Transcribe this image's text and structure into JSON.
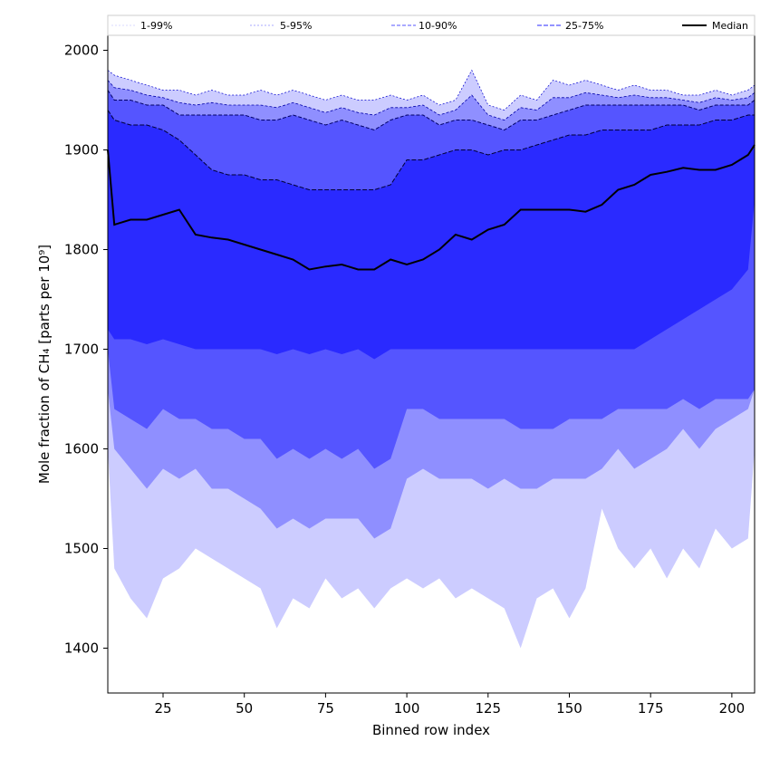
{
  "chart_data": {
    "type": "area",
    "xlabel": "Binned row index",
    "ylabel": "Mole fraction of CH₄ [parts per 10⁹]",
    "xlim": [
      8,
      207
    ],
    "ylim": [
      1355,
      2015
    ],
    "xticks": [
      25,
      50,
      75,
      100,
      125,
      150,
      175,
      200
    ],
    "yticks": [
      1400,
      1500,
      1600,
      1700,
      1800,
      1900,
      2000
    ],
    "legend": [
      "1-99%",
      "5-95%",
      "10-90%",
      "25-75%",
      "Median"
    ],
    "legend_position": "top",
    "x": [
      8,
      10,
      15,
      20,
      25,
      30,
      35,
      40,
      45,
      50,
      55,
      60,
      65,
      70,
      75,
      80,
      85,
      90,
      95,
      100,
      105,
      110,
      115,
      120,
      125,
      130,
      135,
      140,
      145,
      150,
      155,
      160,
      165,
      170,
      175,
      180,
      185,
      190,
      195,
      200,
      205,
      207
    ],
    "bands": [
      {
        "name": "1-99%",
        "lower": [
          1600,
          1480,
          1450,
          1430,
          1470,
          1480,
          1500,
          1490,
          1480,
          1470,
          1460,
          1420,
          1450,
          1440,
          1470,
          1450,
          1460,
          1440,
          1460,
          1470,
          1460,
          1470,
          1450,
          1460,
          1450,
          1440,
          1400,
          1450,
          1460,
          1430,
          1460,
          1540,
          1500,
          1480,
          1500,
          1470,
          1500,
          1480,
          1520,
          1500,
          1510,
          1600
        ],
        "upper": [
          1980,
          1975,
          1970,
          1965,
          1960,
          1960,
          1955,
          1960,
          1955,
          1955,
          1960,
          1955,
          1960,
          1955,
          1950,
          1955,
          1950,
          1950,
          1955,
          1950,
          1955,
          1945,
          1950,
          1980,
          1945,
          1940,
          1955,
          1950,
          1970,
          1965,
          1970,
          1965,
          1960,
          1965,
          1960,
          1960,
          1955,
          1955,
          1960,
          1955,
          1960,
          1965
        ]
      },
      {
        "name": "5-95%",
        "lower": [
          1660,
          1600,
          1580,
          1560,
          1580,
          1570,
          1580,
          1560,
          1560,
          1550,
          1540,
          1520,
          1530,
          1520,
          1530,
          1530,
          1530,
          1510,
          1520,
          1570,
          1580,
          1570,
          1570,
          1570,
          1560,
          1570,
          1560,
          1560,
          1570,
          1570,
          1570,
          1580,
          1600,
          1580,
          1590,
          1600,
          1620,
          1600,
          1620,
          1630,
          1640,
          1660
        ]
      },
      {
        "name": "10-90%",
        "lower": [
          1700,
          1640,
          1630,
          1620,
          1640,
          1630,
          1630,
          1620,
          1620,
          1610,
          1610,
          1590,
          1600,
          1590,
          1600,
          1590,
          1600,
          1580,
          1590,
          1640,
          1640,
          1630,
          1630,
          1630,
          1630,
          1630,
          1620,
          1620,
          1620,
          1630,
          1630,
          1630,
          1640,
          1640,
          1640,
          1640,
          1650,
          1640,
          1650,
          1650,
          1650,
          1660
        ],
        "upper": [
          1960,
          1950,
          1950,
          1945,
          1945,
          1935,
          1935,
          1935,
          1935,
          1935,
          1930,
          1930,
          1935,
          1930,
          1925,
          1930,
          1925,
          1920,
          1930,
          1935,
          1935,
          1925,
          1930,
          1930,
          1925,
          1920,
          1930,
          1930,
          1935,
          1940,
          1945,
          1945,
          1945,
          1945,
          1945,
          1945,
          1945,
          1940,
          1945,
          1945,
          1945,
          1950
        ]
      },
      {
        "name": "25-75%",
        "lower": [
          1720,
          1710,
          1710,
          1705,
          1710,
          1705,
          1700,
          1700,
          1700,
          1700,
          1700,
          1695,
          1700,
          1695,
          1700,
          1695,
          1700,
          1690,
          1700,
          1700,
          1700,
          1700,
          1700,
          1700,
          1700,
          1700,
          1700,
          1700,
          1700,
          1700,
          1700,
          1700,
          1700,
          1700,
          1710,
          1720,
          1730,
          1740,
          1750,
          1760,
          1780,
          1850
        ],
        "upper": [
          1940,
          1930,
          1925,
          1925,
          1920,
          1910,
          1895,
          1880,
          1875,
          1875,
          1870,
          1870,
          1865,
          1860,
          1860,
          1860,
          1860,
          1860,
          1865,
          1890,
          1890,
          1895,
          1900,
          1900,
          1895,
          1900,
          1900,
          1905,
          1910,
          1915,
          1915,
          1920,
          1920,
          1920,
          1920,
          1925,
          1925,
          1925,
          1930,
          1930,
          1935,
          1935
        ]
      }
    ],
    "median": [
      1900,
      1825,
      1830,
      1830,
      1835,
      1840,
      1815,
      1812,
      1810,
      1805,
      1800,
      1795,
      1790,
      1780,
      1783,
      1785,
      1780,
      1780,
      1790,
      1785,
      1790,
      1800,
      1815,
      1810,
      1820,
      1825,
      1840,
      1840,
      1840,
      1840,
      1838,
      1845,
      1860,
      1865,
      1875,
      1878,
      1882,
      1880,
      1880,
      1885,
      1895,
      1905
    ]
  },
  "colors": {
    "band_1_99": "#ccccff",
    "band_5_95": "#8f8fff",
    "band_10_90": "#5555ff",
    "band_25_75": "#2a2aff",
    "median": "#000000"
  }
}
